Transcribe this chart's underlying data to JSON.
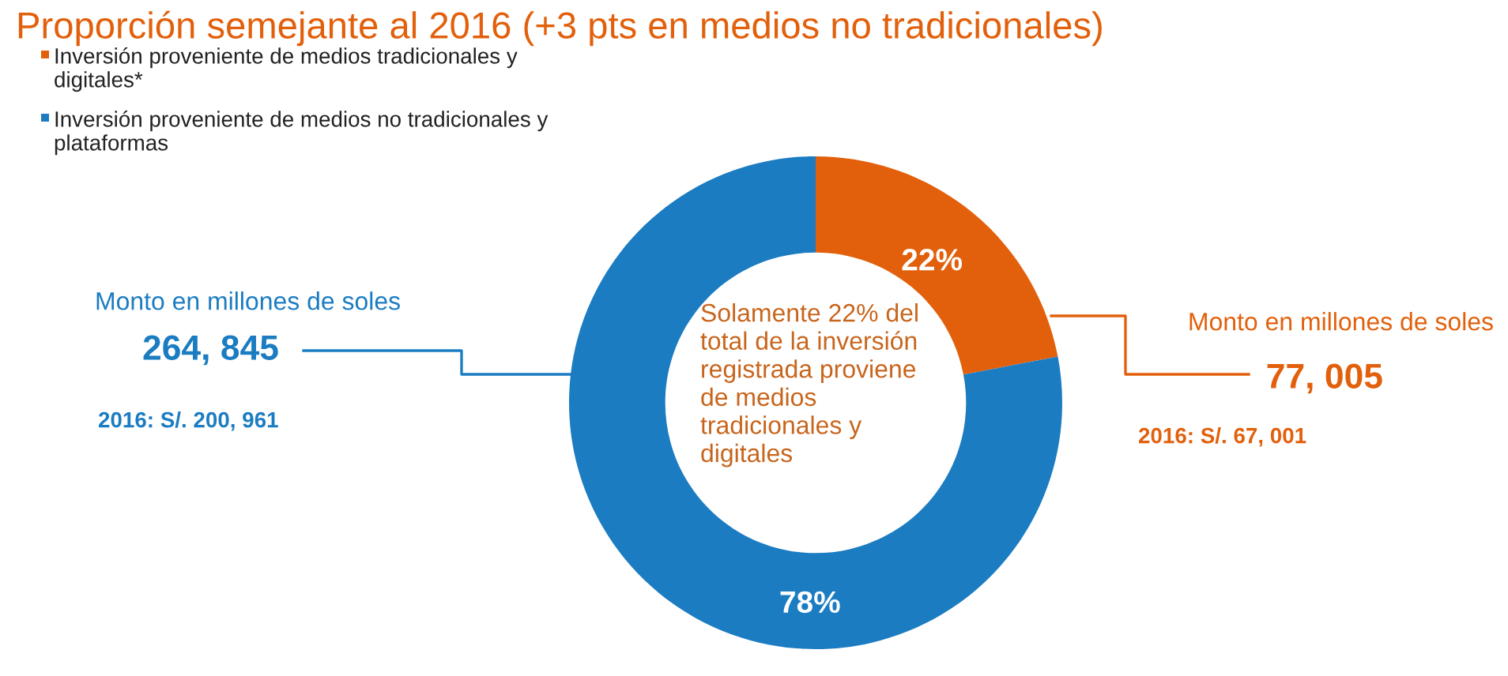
{
  "chart_data": {
    "type": "donut",
    "title": "Proporción semejante al 2016 (+3 pts en medios no tradicionales)",
    "categories": [
      "Inversión proveniente de medios tradicionales y digitales*",
      "Inversión proveniente de medios no tradicionales y plataformas"
    ],
    "values": [
      22,
      78
    ],
    "colors": [
      "#e2600c",
      "#1b7cc2"
    ],
    "value_labels": [
      "22%",
      "78%"
    ],
    "legend": "top left",
    "annotations": [
      "Monto en millones de soles",
      "77, 005",
      "2016: S/. 67, 001",
      "Monto en millones de soles",
      "264, 845",
      "2016: S/. 200, 961",
      "Solamente 22% del total de la inversión registrada proviene de medios tradicionales y digitales"
    ]
  }
}
